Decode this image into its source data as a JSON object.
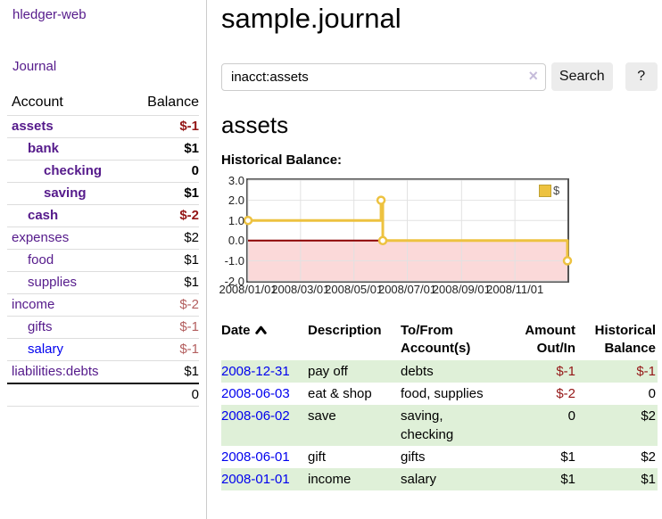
{
  "app_title": "hledger-web",
  "sidebar": {
    "journal_link": "Journal",
    "account_header": "Account",
    "balance_header": "Balance",
    "accounts": [
      {
        "name": "assets",
        "balance": "$-1",
        "level": 1,
        "bold": true,
        "neg": "strong",
        "link": "purple"
      },
      {
        "name": "bank",
        "balance": "$1",
        "level": 2,
        "bold": true,
        "neg": "none",
        "link": "purple"
      },
      {
        "name": "checking",
        "balance": "0",
        "level": 3,
        "bold": true,
        "neg": "none",
        "link": "purple"
      },
      {
        "name": "saving",
        "balance": "$1",
        "level": 3,
        "bold": true,
        "neg": "none",
        "link": "purple"
      },
      {
        "name": "cash",
        "balance": "$-2",
        "level": 2,
        "bold": true,
        "neg": "strong",
        "link": "purple"
      },
      {
        "name": "expenses",
        "balance": "$2",
        "level": 1,
        "bold": false,
        "neg": "none",
        "link": "purple"
      },
      {
        "name": "food",
        "balance": "$1",
        "level": 2,
        "bold": false,
        "neg": "none",
        "link": "purple"
      },
      {
        "name": "supplies",
        "balance": "$1",
        "level": 2,
        "bold": false,
        "neg": "none",
        "link": "purple"
      },
      {
        "name": "income",
        "balance": "$-2",
        "level": 1,
        "bold": false,
        "neg": "soft",
        "link": "purple"
      },
      {
        "name": "gifts",
        "balance": "$-1",
        "level": 2,
        "bold": false,
        "neg": "soft",
        "link": "purple"
      },
      {
        "name": "salary",
        "balance": "$-1",
        "level": 2,
        "bold": false,
        "neg": "soft",
        "link": "blue"
      },
      {
        "name": "liabilities:debts",
        "balance": "$1",
        "level": 1,
        "bold": false,
        "neg": "none",
        "link": "purple"
      }
    ],
    "total": "0"
  },
  "main": {
    "title": "sample.journal",
    "search": {
      "value": "inacct:assets",
      "clear_icon": "×",
      "button_label": "Search",
      "help_label": "?"
    },
    "account_heading": "assets",
    "chart_label": "Historical Balance:"
  },
  "register": {
    "headers": {
      "date": "Date",
      "description": "Description",
      "tofrom": "To/From Account(s)",
      "amount": "Amount Out/In",
      "balance": "Historical Balance"
    },
    "rows": [
      {
        "date": "2008-12-31",
        "description": "pay off",
        "accounts": "debts",
        "amount": "$-1",
        "balance": "$-1",
        "amount_neg": true,
        "balance_neg": true
      },
      {
        "date": "2008-06-03",
        "description": "eat & shop",
        "accounts": "food, supplies",
        "amount": "$-2",
        "balance": "0",
        "amount_neg": true,
        "balance_neg": false
      },
      {
        "date": "2008-06-02",
        "description": "save",
        "accounts": "saving, checking",
        "amount": "0",
        "balance": "$2",
        "amount_neg": false,
        "balance_neg": false
      },
      {
        "date": "2008-06-01",
        "description": "gift",
        "accounts": "gifts",
        "amount": "$1",
        "balance": "$2",
        "amount_neg": false,
        "balance_neg": false
      },
      {
        "date": "2008-01-01",
        "description": "income",
        "accounts": "salary",
        "amount": "$1",
        "balance": "$1",
        "amount_neg": false,
        "balance_neg": false
      }
    ]
  },
  "chart_data": {
    "type": "line",
    "title": "Historical Balance",
    "step": true,
    "legend": [
      {
        "label": "$",
        "color": "#edc240"
      }
    ],
    "legend_position": "top-right",
    "grid": true,
    "x_range": [
      "2008-01-01",
      "2008-12-31"
    ],
    "ylim": [
      -2,
      3
    ],
    "y_ticks": [
      3.0,
      2.0,
      1.0,
      0.0,
      -1.0,
      -2.0
    ],
    "x_ticks": [
      "2008/01/01",
      "2008/03/01",
      "2008/05/01",
      "2008/07/01",
      "2008/09/01",
      "2008/11/01"
    ],
    "points": [
      {
        "x": "2008-01-01",
        "y": 1
      },
      {
        "x": "2008-06-01",
        "y": 2
      },
      {
        "x": "2008-06-03",
        "y": 0
      },
      {
        "x": "2008-12-31",
        "y": -1
      }
    ],
    "colors": {
      "line": "#edc240",
      "marker_fill": "#ffffff",
      "zero_line": "#8b0000",
      "negative_fill": "#fbd9d9",
      "grid": "#e2e2e2",
      "border": "#545454"
    }
  }
}
